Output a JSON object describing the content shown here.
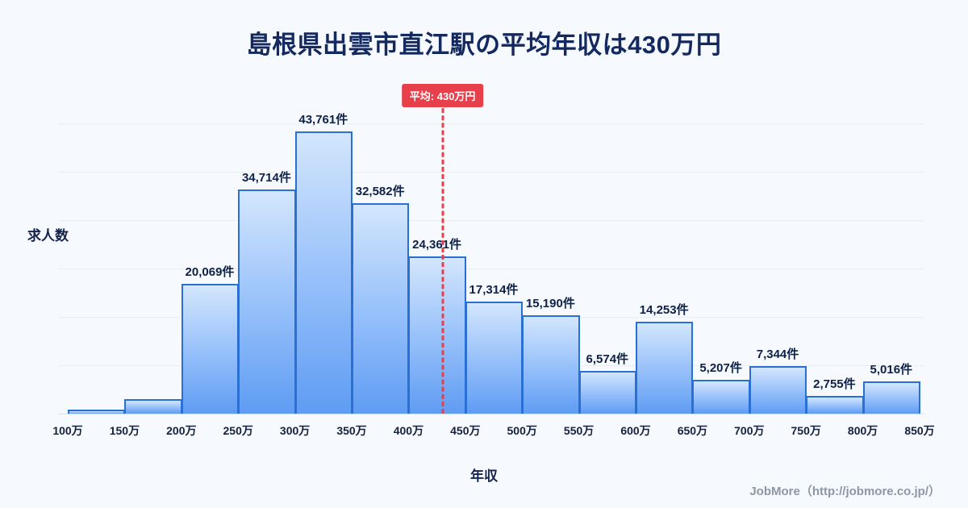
{
  "title": "島根県出雲市直江駅の平均年収は430万円",
  "average_badge": "平均: 430万円",
  "axis": {
    "y_label": "求人数",
    "x_label": "年収"
  },
  "footer": "JobMore（http://jobmore.co.jp/）",
  "colors": {
    "accent_red": "#e8404b",
    "bar_border": "#2a6fd3",
    "bar_fill_top": "#d3e6fd",
    "bar_fill_bottom": "#5f9cf3",
    "title_navy": "#13295f",
    "background": "#f6f9fd"
  },
  "chart_data": {
    "type": "bar",
    "title": "島根県出雲市直江駅の平均年収は430万円",
    "xlabel": "年収",
    "ylabel": "求人数",
    "ylim": [
      0,
      45000
    ],
    "grid": true,
    "x_ticks": [
      "100万",
      "150万",
      "200万",
      "250万",
      "300万",
      "350万",
      "400万",
      "450万",
      "500万",
      "550万",
      "600万",
      "650万",
      "700万",
      "750万",
      "800万",
      "850万"
    ],
    "bars": [
      {
        "range": "100万-150万",
        "value": 600,
        "label": ""
      },
      {
        "range": "150万-200万",
        "value": 2300,
        "label": ""
      },
      {
        "range": "200万-250万",
        "value": 20069,
        "label": "20,069件"
      },
      {
        "range": "250万-300万",
        "value": 34714,
        "label": "34,714件"
      },
      {
        "range": "300万-350万",
        "value": 43761,
        "label": "43,761件"
      },
      {
        "range": "350万-400万",
        "value": 32582,
        "label": "32,582件"
      },
      {
        "range": "400万-450万",
        "value": 24361,
        "label": "24,361件"
      },
      {
        "range": "450万-500万",
        "value": 17314,
        "label": "17,314件"
      },
      {
        "range": "500万-550万",
        "value": 15190,
        "label": "15,190件"
      },
      {
        "range": "550万-600万",
        "value": 6574,
        "label": "6,574件"
      },
      {
        "range": "600万-650万",
        "value": 14253,
        "label": "14,253件"
      },
      {
        "range": "650万-700万",
        "value": 5207,
        "label": "5,207件"
      },
      {
        "range": "700万-750万",
        "value": 7344,
        "label": "7,344件"
      },
      {
        "range": "750万-800万",
        "value": 2755,
        "label": "2,755件"
      },
      {
        "range": "800万-850万",
        "value": 5016,
        "label": "5,016件"
      }
    ],
    "average": {
      "x_value": 430,
      "label": "平均: 430万円",
      "line_style": "dashed"
    }
  }
}
